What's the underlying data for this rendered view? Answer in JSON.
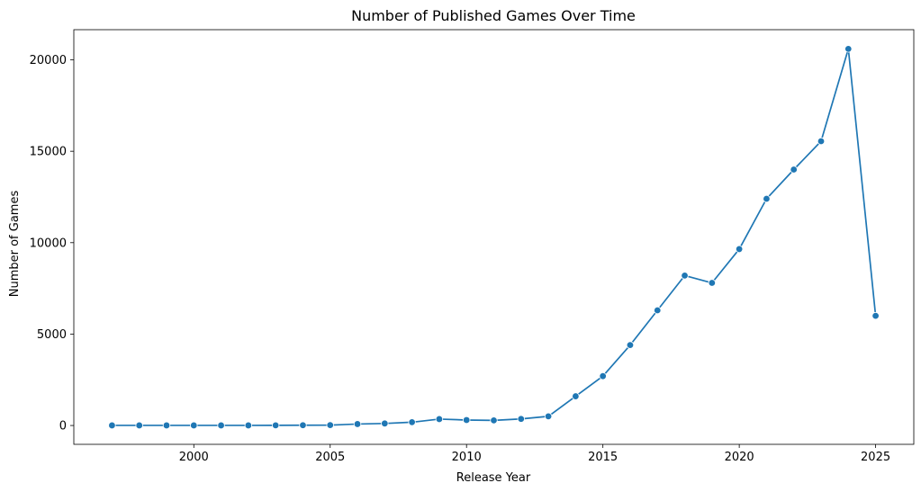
{
  "chart_data": {
    "type": "line",
    "title": "Number of Published Games Over Time",
    "xlabel": "Release Year",
    "ylabel": "Number of Games",
    "xlim": [
      1995.6,
      2026.4
    ],
    "ylim": [
      -1030,
      21650
    ],
    "xticks": [
      2000,
      2005,
      2010,
      2015,
      2020,
      2025
    ],
    "yticks": [
      0,
      5000,
      10000,
      15000,
      20000
    ],
    "grid": false,
    "legend": "none",
    "color": "#1f77b4",
    "marker": "circle",
    "x": [
      1997,
      1998,
      1999,
      2000,
      2001,
      2002,
      2003,
      2004,
      2005,
      2006,
      2007,
      2008,
      2009,
      2010,
      2011,
      2012,
      2013,
      2014,
      2015,
      2016,
      2017,
      2018,
      2019,
      2020,
      2021,
      2022,
      2023,
      2024,
      2025
    ],
    "values": [
      5,
      5,
      5,
      5,
      5,
      5,
      10,
      15,
      20,
      80,
      110,
      180,
      350,
      300,
      280,
      360,
      500,
      1600,
      2700,
      4400,
      6300,
      8200,
      7800,
      9650,
      12400,
      14000,
      15550,
      20600,
      6000
    ]
  }
}
